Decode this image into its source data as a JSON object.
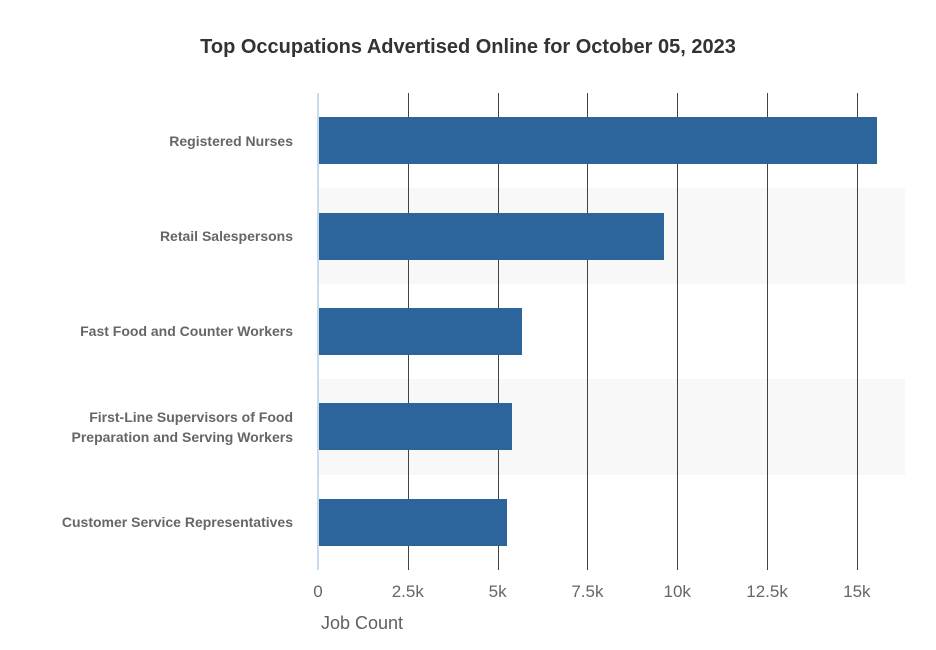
{
  "chart_data": {
    "type": "bar",
    "orientation": "horizontal",
    "title": "Top Occupations Advertised Online for October 05, 2023",
    "xlabel": "Job Count",
    "categories": [
      "Registered Nurses",
      "Retail Salespersons",
      "Fast Food and Counter Workers",
      "First-Line Supervisors of Food Preparation and Serving Workers",
      "Customer Service Representatives"
    ],
    "values": [
      15530,
      9600,
      5650,
      5370,
      5230
    ],
    "x_ticks": [
      {
        "value": 0,
        "label": "0"
      },
      {
        "value": 2500,
        "label": "2.5k"
      },
      {
        "value": 5000,
        "label": "5k"
      },
      {
        "value": 7500,
        "label": "7.5k"
      },
      {
        "value": 10000,
        "label": "10k"
      },
      {
        "value": 12500,
        "label": "12.5k"
      },
      {
        "value": 15000,
        "label": "15k"
      }
    ],
    "xlim": [
      0,
      16340
    ],
    "grid": true,
    "legend": "none",
    "striped_rows": [
      1,
      3
    ],
    "colors": {
      "bar": "#2b659b",
      "row_band": "#f8f8f8",
      "gridline": "#424242",
      "y_axis_line": "#c7dbed",
      "title_text": "#333333",
      "label_text": "#666666",
      "tick_text": "#666666"
    }
  }
}
